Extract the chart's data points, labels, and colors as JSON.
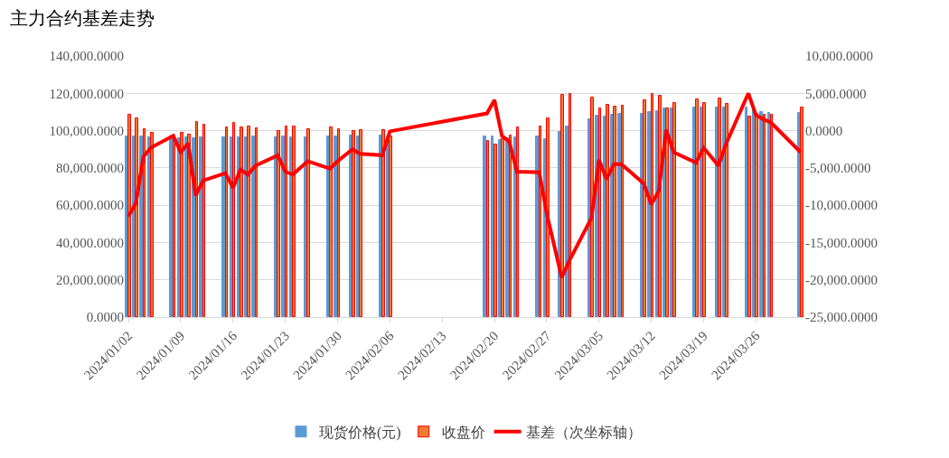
{
  "chart_data": {
    "type": "bar",
    "title": "主力合约基差走势",
    "x": [
      "2024-01-02",
      "2024-01-03",
      "2024-01-04",
      "2024-01-05",
      "2024-01-08",
      "2024-01-09",
      "2024-01-10",
      "2024-01-11",
      "2024-01-12",
      "2024-01-15",
      "2024-01-16",
      "2024-01-17",
      "2024-01-18",
      "2024-01-19",
      "2024-01-22",
      "2024-01-23",
      "2024-01-24",
      "2024-01-26",
      "2024-01-29",
      "2024-01-30",
      "2024-02-01",
      "2024-02-02",
      "2024-02-05",
      "2024-02-06",
      "2024-02-19",
      "2024-02-20",
      "2024-02-21",
      "2024-02-22",
      "2024-02-23",
      "2024-02-26",
      "2024-02-27",
      "2024-02-29",
      "2024-03-01",
      "2024-03-04",
      "2024-03-05",
      "2024-03-06",
      "2024-03-07",
      "2024-03-08",
      "2024-03-11",
      "2024-03-12",
      "2024-03-13",
      "2024-03-14",
      "2024-03-15",
      "2024-03-18",
      "2024-03-19",
      "2024-03-21",
      "2024-03-22",
      "2024-03-25",
      "2024-03-26",
      "2024-03-27",
      "2024-03-28",
      "2024-04-01"
    ],
    "series": [
      {
        "name": "现货价格(元)",
        "color": "#5b9bd5",
        "values": [
          96800,
          97000,
          97100,
          96400,
          96400,
          95800,
          96200,
          95900,
          96300,
          96200,
          96600,
          96600,
          96500,
          96700,
          96500,
          96700,
          96500,
          96500,
          96800,
          96900,
          97200,
          97100,
          97200,
          97000,
          97000,
          96700,
          94800,
          96100,
          96400,
          96800,
          95600,
          99500,
          102000,
          105900,
          107900,
          107400,
          108600,
          108900,
          109200,
          109900,
          110600,
          111900,
          112100,
          112500,
          112400,
          112400,
          112400,
          112500,
          111200,
          109800,
          109400,
          109700
        ]
      },
      {
        "name": "收盘价",
        "color": "#ed7d31",
        "values": [
          108300,
          106700,
          100600,
          98700,
          97100,
          98700,
          97900,
          104600,
          103000,
          101900,
          104300,
          101800,
          102400,
          101400,
          99800,
          102200,
          102400,
          100600,
          101900,
          101000,
          99700,
          100200,
          100500,
          97100,
          94700,
          92600,
          95500,
          97600,
          101900,
          102400,
          106700,
          119200,
          119500,
          117600,
          111800,
          113900,
          113100,
          113400,
          116300,
          119800,
          118700,
          111800,
          115000,
          116800,
          114700,
          117100,
          114200,
          107500,
          109100,
          108300,
          108300,
          112600
        ]
      },
      {
        "name": "基差（次坐标轴）",
        "type": "line",
        "axis": "y2",
        "color": "#ff0000",
        "values": [
          -11500,
          -9700,
          -3500,
          -2300,
          -700,
          -2900,
          -1700,
          -8700,
          -6700,
          -5700,
          -7700,
          -5200,
          -5900,
          -4700,
          -3300,
          -5500,
          -5900,
          -4100,
          -5100,
          -4100,
          -2500,
          -3100,
          -3300,
          -100,
          2300,
          4100,
          -700,
          -1500,
          -5500,
          -5600,
          -11100,
          -19700,
          -17500,
          -11700,
          -3900,
          -6500,
          -4500,
          -4500,
          -7100,
          -9900,
          -8100,
          100,
          -2900,
          -4300,
          -2300,
          -4700,
          -1800,
          5000,
          2100,
          1500,
          1100,
          -2900
        ]
      }
    ],
    "xlim": [
      "2024-01-01T12:00",
      "2024-04-01T12:00"
    ],
    "xticks": [
      {
        "value": "2024-01-02",
        "label": "2024/01/02"
      },
      {
        "value": "2024-01-09",
        "label": "2024/01/09"
      },
      {
        "value": "2024-01-16",
        "label": "2024/01/16"
      },
      {
        "value": "2024-01-23",
        "label": "2024/01/23"
      },
      {
        "value": "2024-01-30",
        "label": "2024/01/30"
      },
      {
        "value": "2024-02-06",
        "label": "2024/02/06"
      },
      {
        "value": "2024-02-13",
        "label": "2024/02/13"
      },
      {
        "value": "2024-02-20",
        "label": "2024/02/20"
      },
      {
        "value": "2024-02-27",
        "label": "2024/02/27"
      },
      {
        "value": "2024-03-05",
        "label": "2024/03/05"
      },
      {
        "value": "2024-03-12",
        "label": "2024/03/12"
      },
      {
        "value": "2024-03-19",
        "label": "2024/03/19"
      },
      {
        "value": "2024-03-26",
        "label": "2024/03/26"
      }
    ],
    "ylim": [
      0,
      140000
    ],
    "yticks": [
      {
        "value": 0,
        "label": "0.0000"
      },
      {
        "value": 20000,
        "label": "20,000.0000"
      },
      {
        "value": 40000,
        "label": "40,000.0000"
      },
      {
        "value": 60000,
        "label": "60,000.0000"
      },
      {
        "value": 80000,
        "label": "80,000.0000"
      },
      {
        "value": 100000,
        "label": "100,000.0000"
      },
      {
        "value": 120000,
        "label": "120,000.0000"
      },
      {
        "value": 140000,
        "label": "140,000.0000"
      }
    ],
    "y2lim": [
      -25000,
      10000
    ],
    "y2ticks": [
      {
        "value": -25000,
        "label": "-25,000.0000"
      },
      {
        "value": -20000,
        "label": "-20,000.0000"
      },
      {
        "value": -15000,
        "label": "-15,000.0000"
      },
      {
        "value": -10000,
        "label": "-10,000.0000"
      },
      {
        "value": -5000,
        "label": "-5,000.0000"
      },
      {
        "value": 0,
        "label": "0.0000"
      },
      {
        "value": 5000,
        "label": "5,000.0000"
      },
      {
        "value": 10000,
        "label": "10,000.0000"
      }
    ],
    "grid": "y",
    "legend": "bottom",
    "marker": "none",
    "line_style": "solid"
  }
}
